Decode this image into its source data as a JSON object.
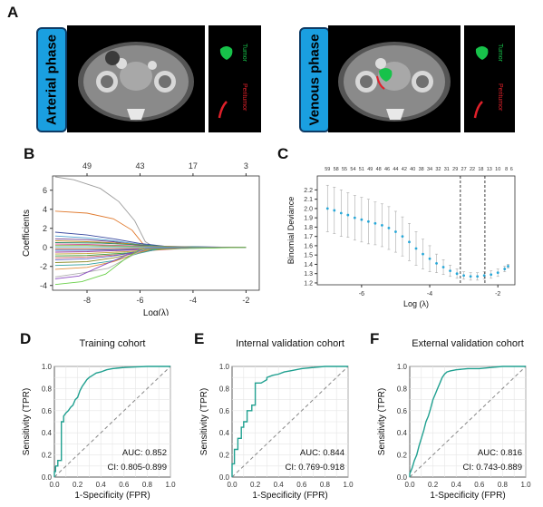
{
  "panels": {
    "a": "A",
    "b": "B",
    "c": "C",
    "d": "D",
    "e": "E",
    "f": "F"
  },
  "panel_a": {
    "left_phase": "Arterial phase",
    "right_phase": "Venous phase",
    "tumor_label": "Tumor",
    "peritumor_label": "Peritumor",
    "colors": {
      "badge": "#1a9fe0",
      "tumor": "#17c24a",
      "peritumor": "#e0202a"
    }
  },
  "chart_data": [
    {
      "id": "B",
      "type": "line",
      "xlabel": "Log(λ)",
      "ylabel": "Coefficients",
      "xlim": [
        -9.3,
        -1.5
      ],
      "ylim": [
        -4.5,
        7.5
      ],
      "xticks": [
        -8,
        -6,
        -4,
        -2
      ],
      "yticks": [
        -4,
        -2,
        0,
        2,
        4,
        6
      ],
      "top_ticks": {
        "x": [
          -8,
          -6,
          -4,
          -2
        ],
        "labels": [
          "49",
          "43",
          "17",
          "3"
        ]
      },
      "grid": false,
      "series": [
        {
          "color": "#9e9e9e",
          "values": [
            [
              -9.2,
              7.4
            ],
            [
              -8.5,
              7.1
            ],
            [
              -7.5,
              6.2
            ],
            [
              -6.8,
              4.8
            ],
            [
              -6.2,
              2.8
            ],
            [
              -5.8,
              0.6
            ],
            [
              -5.5,
              0.1
            ],
            [
              -2,
              0
            ]
          ]
        },
        {
          "color": "#e07a2e",
          "values": [
            [
              -9.2,
              3.8
            ],
            [
              -8,
              3.6
            ],
            [
              -7,
              3.0
            ],
            [
              -6.3,
              1.8
            ],
            [
              -5.9,
              0.4
            ],
            [
              -5.6,
              0.05
            ],
            [
              -2,
              0
            ]
          ]
        },
        {
          "color": "#3a4aa0",
          "values": [
            [
              -9.2,
              1.6
            ],
            [
              -8,
              1.3
            ],
            [
              -7,
              0.9
            ],
            [
              -6,
              0.4
            ],
            [
              -5,
              0.1
            ],
            [
              -2,
              0
            ]
          ]
        },
        {
          "color": "#4aa0d0",
          "values": [
            [
              -9.2,
              1.2
            ],
            [
              -8,
              1.0
            ],
            [
              -7,
              0.7
            ],
            [
              -6,
              0.3
            ],
            [
              -5,
              0.05
            ],
            [
              -2,
              0
            ]
          ]
        },
        {
          "color": "#6a3a8a",
          "values": [
            [
              -9.2,
              0.9
            ],
            [
              -8,
              0.8
            ],
            [
              -7,
              0.6
            ],
            [
              -6,
              0.2
            ],
            [
              -4.5,
              0.05
            ],
            [
              -2,
              0
            ]
          ]
        },
        {
          "color": "#c08a20",
          "values": [
            [
              -9.2,
              0.7
            ],
            [
              -8,
              0.6
            ],
            [
              -6.5,
              0.4
            ],
            [
              -5.5,
              0.15
            ],
            [
              -4,
              0.02
            ],
            [
              -2,
              0
            ]
          ]
        },
        {
          "color": "#2a8a6a",
          "values": [
            [
              -9.2,
              0.5
            ],
            [
              -7.5,
              0.45
            ],
            [
              -6,
              0.25
            ],
            [
              -5,
              0.1
            ],
            [
              -3,
              0.01
            ],
            [
              -2,
              0
            ]
          ]
        },
        {
          "color": "#d04a8a",
          "values": [
            [
              -9.2,
              0.35
            ],
            [
              -8,
              0.3
            ],
            [
              -6,
              0.15
            ],
            [
              -4,
              0.03
            ],
            [
              -2,
              0
            ]
          ]
        },
        {
          "color": "#8ab040",
          "values": [
            [
              -9.2,
              0.2
            ],
            [
              -8,
              0.2
            ],
            [
              -6,
              0.1
            ],
            [
              -4,
              0.02
            ],
            [
              -2,
              0
            ]
          ]
        },
        {
          "color": "#50b0b0",
          "values": [
            [
              -9.2,
              0.05
            ],
            [
              -7,
              0.05
            ],
            [
              -5,
              0.02
            ],
            [
              -2,
              0
            ]
          ]
        },
        {
          "color": "#b05030",
          "values": [
            [
              -9.2,
              -0.15
            ],
            [
              -8,
              -0.15
            ],
            [
              -6,
              -0.1
            ],
            [
              -4,
              -0.02
            ],
            [
              -2,
              0
            ]
          ]
        },
        {
          "color": "#3060c0",
          "values": [
            [
              -9.2,
              -0.3
            ],
            [
              -8,
              -0.3
            ],
            [
              -6,
              -0.2
            ],
            [
              -4,
              -0.05
            ],
            [
              -2,
              0
            ]
          ]
        },
        {
          "color": "#a040a0",
          "values": [
            [
              -9.2,
              -0.5
            ],
            [
              -8,
              -0.45
            ],
            [
              -6.5,
              -0.3
            ],
            [
              -5,
              -0.1
            ],
            [
              -3,
              -0.01
            ],
            [
              -2,
              0
            ]
          ]
        },
        {
          "color": "#c0a030",
          "values": [
            [
              -9.2,
              -0.7
            ],
            [
              -8,
              -0.65
            ],
            [
              -6.5,
              -0.45
            ],
            [
              -5,
              -0.15
            ],
            [
              -3.5,
              -0.02
            ],
            [
              -2,
              0
            ]
          ]
        },
        {
          "color": "#3a9a3a",
          "values": [
            [
              -9.2,
              -0.9
            ],
            [
              -8,
              -0.85
            ],
            [
              -6.5,
              -0.6
            ],
            [
              -5.5,
              -0.25
            ],
            [
              -4,
              -0.03
            ],
            [
              -2,
              0
            ]
          ]
        },
        {
          "color": "#d06060",
          "values": [
            [
              -9.2,
              -1.1
            ],
            [
              -8,
              -1.0
            ],
            [
              -6.5,
              -0.7
            ],
            [
              -5.5,
              -0.3
            ],
            [
              -4,
              -0.05
            ],
            [
              -2,
              0
            ]
          ]
        },
        {
          "color": "#6060c0",
          "values": [
            [
              -9.2,
              -1.3
            ],
            [
              -8,
              -1.2
            ],
            [
              -7,
              -0.9
            ],
            [
              -6,
              -0.4
            ],
            [
              -5,
              -0.1
            ],
            [
              -2,
              0
            ]
          ]
        },
        {
          "color": "#909030",
          "values": [
            [
              -9.2,
              -1.6
            ],
            [
              -8,
              -1.5
            ],
            [
              -7,
              -1.1
            ],
            [
              -6,
              -0.5
            ],
            [
              -5,
              -0.1
            ],
            [
              -2,
              0
            ]
          ]
        },
        {
          "color": "#30a0a0",
          "values": [
            [
              -9.2,
              -1.9
            ],
            [
              -8,
              -1.8
            ],
            [
              -7,
              -1.4
            ],
            [
              -6,
              -0.6
            ],
            [
              -5.2,
              -0.1
            ],
            [
              -2,
              0
            ]
          ]
        },
        {
          "color": "#e09040",
          "values": [
            [
              -9.2,
              -2.3
            ],
            [
              -8,
              -2.1
            ],
            [
              -7,
              -1.5
            ],
            [
              -6.2,
              -0.7
            ],
            [
              -5.5,
              -0.1
            ],
            [
              -2,
              0
            ]
          ]
        },
        {
          "color": "#b0b0b0",
          "values": [
            [
              -9.2,
              -3.1
            ],
            [
              -8.2,
              -2.7
            ],
            [
              -7.2,
              -2.2
            ],
            [
              -6.4,
              -1.0
            ],
            [
              -5.8,
              -0.1
            ],
            [
              -2,
              0
            ]
          ]
        },
        {
          "color": "#8a4ac0",
          "values": [
            [
              -9.2,
              -3.3
            ],
            [
              -8.3,
              -3.0
            ],
            [
              -7.5,
              -2.0
            ],
            [
              -6.5,
              -0.8
            ],
            [
              -5.8,
              -0.1
            ],
            [
              -2,
              0
            ]
          ]
        },
        {
          "color": "#6ad04a",
          "values": [
            [
              -9.2,
              -3.9
            ],
            [
              -8.2,
              -3.6
            ],
            [
              -7.3,
              -2.8
            ],
            [
              -6.6,
              -1.3
            ],
            [
              -6.0,
              -0.2
            ],
            [
              -2,
              0
            ]
          ]
        }
      ]
    },
    {
      "id": "C",
      "type": "scatter",
      "xlabel": "Log (λ)",
      "ylabel": "Binomial Deviance",
      "xlim": [
        -7.3,
        -1.5
      ],
      "ylim": [
        1.18,
        2.35
      ],
      "xticks": [
        -6,
        -4,
        -2
      ],
      "yticks": [
        1.2,
        1.3,
        1.4,
        1.5,
        1.6,
        1.7,
        1.8,
        1.9,
        2.0,
        2.1,
        2.2
      ],
      "top_ticks": {
        "x": [
          -7.0,
          -6.75,
          -6.5,
          -6.25,
          -6.0,
          -5.75,
          -5.5,
          -5.25,
          -5.0,
          -4.75,
          -4.5,
          -4.25,
          -4.0,
          -3.75,
          -3.5,
          -3.25,
          -3.0,
          -2.75,
          -2.5,
          -2.25,
          -2.0,
          -1.75,
          -1.6
        ],
        "labels": [
          "59",
          "58",
          "55",
          "54",
          "51",
          "49",
          "48",
          "46",
          "44",
          "42",
          "40",
          "38",
          "34",
          "32",
          "31",
          "29",
          "27",
          "22",
          "18",
          "13",
          "10",
          "8",
          "6"
        ]
      },
      "vlines": [
        -3.1,
        -2.38
      ],
      "point_color": "#29a8d8",
      "x": [
        -7.0,
        -6.8,
        -6.6,
        -6.4,
        -6.2,
        -6.0,
        -5.8,
        -5.6,
        -5.4,
        -5.2,
        -5.0,
        -4.8,
        -4.6,
        -4.4,
        -4.2,
        -4.0,
        -3.8,
        -3.6,
        -3.4,
        -3.2,
        -3.0,
        -2.8,
        -2.6,
        -2.4,
        -2.2,
        -2.0,
        -1.8,
        -1.7
      ],
      "y": [
        2.0,
        1.98,
        1.95,
        1.93,
        1.9,
        1.88,
        1.86,
        1.84,
        1.82,
        1.79,
        1.75,
        1.7,
        1.64,
        1.57,
        1.51,
        1.46,
        1.41,
        1.37,
        1.33,
        1.3,
        1.28,
        1.27,
        1.27,
        1.28,
        1.29,
        1.31,
        1.35,
        1.38
      ],
      "err": [
        0.25,
        0.25,
        0.25,
        0.24,
        0.24,
        0.24,
        0.24,
        0.23,
        0.23,
        0.23,
        0.22,
        0.21,
        0.2,
        0.18,
        0.16,
        0.14,
        0.1,
        0.08,
        0.06,
        0.05,
        0.04,
        0.04,
        0.04,
        0.04,
        0.04,
        0.04,
        0.03,
        0.02
      ]
    },
    {
      "id": "D",
      "type": "line",
      "title": "Training cohort",
      "xlabel": "1-Specificity (FPR)",
      "ylabel": "Sensitivity (TPR)",
      "xlim": [
        0,
        1
      ],
      "ylim": [
        0,
        1
      ],
      "ticks": [
        0.0,
        0.2,
        0.4,
        0.6,
        0.8,
        1.0
      ],
      "grid": true,
      "auc": "AUC: 0.852",
      "ci": "CI: 0.805-0.899",
      "line_color": "#20a090",
      "fpr": [
        0,
        0,
        0.01,
        0.01,
        0.03,
        0.03,
        0.06,
        0.06,
        0.08,
        0.08,
        0.1,
        0.12,
        0.14,
        0.16,
        0.18,
        0.2,
        0.22,
        0.24,
        0.26,
        0.28,
        0.3,
        0.33,
        0.36,
        0.4,
        0.45,
        0.5,
        0.6,
        0.7,
        0.8,
        0.9,
        1.0
      ],
      "tpr": [
        0,
        0.05,
        0.05,
        0.1,
        0.1,
        0.15,
        0.15,
        0.5,
        0.5,
        0.55,
        0.58,
        0.6,
        0.63,
        0.65,
        0.7,
        0.72,
        0.78,
        0.82,
        0.85,
        0.88,
        0.9,
        0.92,
        0.94,
        0.95,
        0.97,
        0.98,
        0.99,
        0.995,
        1.0,
        1.0,
        1.0
      ]
    },
    {
      "id": "E",
      "type": "line",
      "title": "Internal validation cohort",
      "xlabel": "1-Specificity (FPR)",
      "ylabel": "Sensitivity (TPR)",
      "xlim": [
        0,
        1
      ],
      "ylim": [
        0,
        1
      ],
      "ticks": [
        0.0,
        0.2,
        0.4,
        0.6,
        0.8,
        1.0
      ],
      "grid": true,
      "auc": "AUC: 0.844",
      "ci": "CI: 0.769-0.918",
      "line_color": "#20a090",
      "fpr": [
        0,
        0,
        0.02,
        0.02,
        0.05,
        0.05,
        0.08,
        0.08,
        0.1,
        0.1,
        0.13,
        0.13,
        0.17,
        0.17,
        0.2,
        0.2,
        0.25,
        0.3,
        0.3,
        0.35,
        0.4,
        0.45,
        0.5,
        0.55,
        0.6,
        0.7,
        0.8,
        1.0
      ],
      "tpr": [
        0,
        0.12,
        0.12,
        0.25,
        0.25,
        0.35,
        0.35,
        0.45,
        0.45,
        0.5,
        0.5,
        0.6,
        0.6,
        0.65,
        0.65,
        0.85,
        0.85,
        0.88,
        0.9,
        0.92,
        0.93,
        0.95,
        0.96,
        0.97,
        0.98,
        0.99,
        1.0,
        1.0
      ]
    },
    {
      "id": "F",
      "type": "line",
      "title": "External validation cohort",
      "xlabel": "1-Specificity (FPR)",
      "ylabel": "Sensitivity (TPR)",
      "xlim": [
        0,
        1
      ],
      "ylim": [
        0,
        1
      ],
      "ticks": [
        0.0,
        0.2,
        0.4,
        0.6,
        0.8,
        1.0
      ],
      "grid": true,
      "auc": "AUC: 0.816",
      "ci": "CI: 0.743-0.889",
      "line_color": "#20a090",
      "fpr": [
        0,
        0,
        0.02,
        0.04,
        0.06,
        0.08,
        0.1,
        0.12,
        0.14,
        0.16,
        0.18,
        0.2,
        0.22,
        0.24,
        0.26,
        0.28,
        0.3,
        0.32,
        0.35,
        0.4,
        0.5,
        0.6,
        0.7,
        0.8,
        0.9,
        1.0
      ],
      "tpr": [
        0,
        0.03,
        0.08,
        0.15,
        0.2,
        0.28,
        0.35,
        0.42,
        0.5,
        0.55,
        0.62,
        0.7,
        0.75,
        0.8,
        0.85,
        0.9,
        0.93,
        0.95,
        0.96,
        0.97,
        0.98,
        0.98,
        0.99,
        1.0,
        1.0,
        1.0
      ]
    }
  ]
}
